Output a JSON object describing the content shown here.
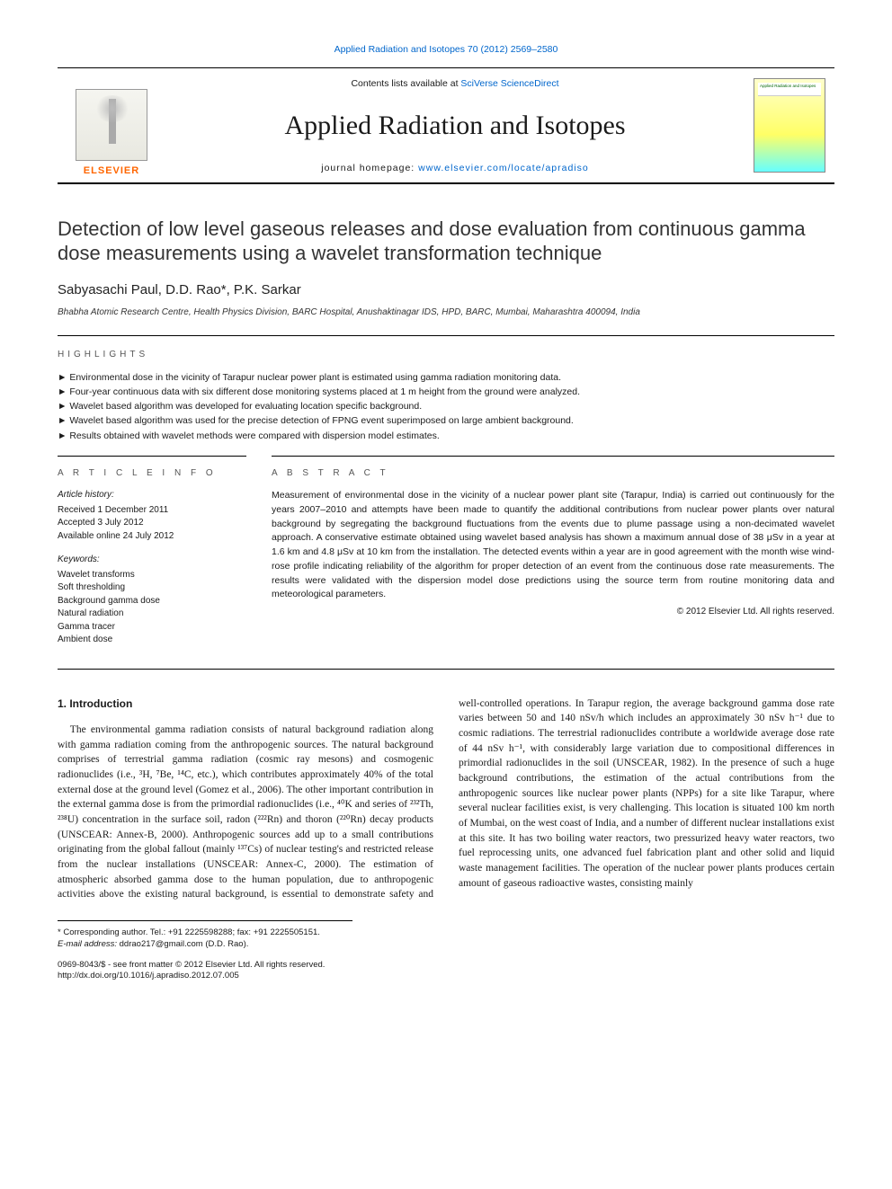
{
  "colors": {
    "link": "#0066cc",
    "elsevier_orange": "#ff6600",
    "text": "#1a1a1a",
    "muted": "#555555"
  },
  "masthead": {
    "top_ref": "Applied Radiation and Isotopes 70 (2012) 2569–2580",
    "contents_prefix": "Contents lists available at ",
    "contents_link": "SciVerse ScienceDirect",
    "journal_name": "Applied Radiation and Isotopes",
    "homepage_prefix": "journal homepage: ",
    "homepage_link": "www.elsevier.com/locate/apradiso",
    "publisher": "ELSEVIER",
    "cover_label": "Applied Radiation and Isotopes"
  },
  "article": {
    "title": "Detection of low level gaseous releases and dose evaluation from continuous gamma dose measurements using a wavelet transformation technique",
    "authors_line": "Sabyasachi Paul, D.D. Rao*, P.K. Sarkar",
    "affiliation": "Bhabha Atomic Research Centre, Health Physics Division, BARC Hospital, Anushaktinagar IDS, HPD, BARC, Mumbai, Maharashtra 400094, India"
  },
  "highlights": {
    "label": "HIGHLIGHTS",
    "items": [
      "Environmental dose in the vicinity of Tarapur nuclear power plant is estimated using gamma radiation monitoring data.",
      "Four-year continuous data with six different dose monitoring systems placed at 1 m height from the ground were analyzed.",
      "Wavelet based algorithm was developed for evaluating location specific background.",
      "Wavelet based algorithm was used for the precise detection of FPNG event superimposed on large ambient background.",
      "Results obtained with wavelet methods were compared with dispersion model estimates."
    ]
  },
  "article_info": {
    "label": "a r t i c l e   i n f o",
    "history_label": "Article history:",
    "history": [
      "Received 1 December 2011",
      "Accepted 3 July 2012",
      "Available online 24 July 2012"
    ],
    "keywords_label": "Keywords:",
    "keywords": [
      "Wavelet transforms",
      "Soft thresholding",
      "Background gamma dose",
      "Natural radiation",
      "Gamma tracer",
      "Ambient dose"
    ]
  },
  "abstract": {
    "label": "a b s t r a c t",
    "text": "Measurement of environmental dose in the vicinity of a nuclear power plant site (Tarapur, India) is carried out continuously for the years 2007–2010 and attempts have been made to quantify the additional contributions from nuclear power plants over natural background by segregating the background fluctuations from the events due to plume passage using a non-decimated wavelet approach. A conservative estimate obtained using wavelet based analysis has shown a maximum annual dose of 38 μSv in a year at 1.6 km and 4.8 μSv at 10 km from the installation. The detected events within a year are in good agreement with the month wise wind-rose profile indicating reliability of the algorithm for proper detection of an event from the continuous dose rate measurements. The results were validated with the dispersion model dose predictions using the source term from routine monitoring data and meteorological parameters.",
    "copyright": "© 2012 Elsevier Ltd. All rights reserved."
  },
  "body": {
    "heading": "1.  Introduction",
    "para": "The environmental gamma radiation consists of natural background radiation along with gamma radiation coming from the anthropogenic sources. The natural background comprises of terrestrial gamma radiation (cosmic ray mesons) and cosmogenic radionuclides (i.e., ³H, ⁷Be, ¹⁴C, etc.), which contributes approximately 40% of the total external dose at the ground level (Gomez et al., 2006). The other important contribution in the external gamma dose is from the primordial radionuclides (i.e., ⁴⁰K and series of ²³²Th, ²³⁸U) concentration in the surface soil, radon (²²²Rn) and thoron (²²⁰Rn) decay products (UNSCEAR: Annex-B, 2000). Anthropogenic sources add up to a small contributions originating from the global fallout (mainly ¹³⁷Cs) of nuclear testing's and restricted release from the nuclear installations (UNSCEAR: Annex-C, 2000). The estimation of atmospheric absorbed gamma dose to the human population, due to anthropogenic activities above the existing natural background, is essential to demonstrate safety and well-controlled operations. In Tarapur region, the average background gamma dose rate varies between 50 and 140 nSv/h which includes an approximately 30 nSv h⁻¹ due to cosmic radiations. The terrestrial radionuclides contribute a worldwide average dose rate of 44 nSv h⁻¹, with considerably large variation due to compositional differences in primordial radionuclides in the soil (UNSCEAR, 1982). In the presence of such a huge background contributions, the estimation of the actual contributions from the anthropogenic sources like nuclear power plants (NPPs) for a site like Tarapur, where several nuclear facilities exist, is very challenging. This location is situated 100 km north of Mumbai, on the west coast of India, and a number of different nuclear installations exist at this site. It has two boiling water reactors, two pressurized heavy water reactors, two fuel reprocessing units, one advanced fuel fabrication plant and other solid and liquid waste management facilities. The operation of the nuclear power plants produces certain amount of gaseous radioactive wastes, consisting mainly"
  },
  "footnote": {
    "corr": "* Corresponding author. Tel.: +91 2225598288; fax: +91 2225505151.",
    "email_label": "E-mail address:",
    "email": "ddrao217@gmail.com (D.D. Rao)."
  },
  "footer": {
    "line1": "0969-8043/$ - see front matter © 2012 Elsevier Ltd. All rights reserved.",
    "line2": "http://dx.doi.org/10.1016/j.apradiso.2012.07.005"
  }
}
